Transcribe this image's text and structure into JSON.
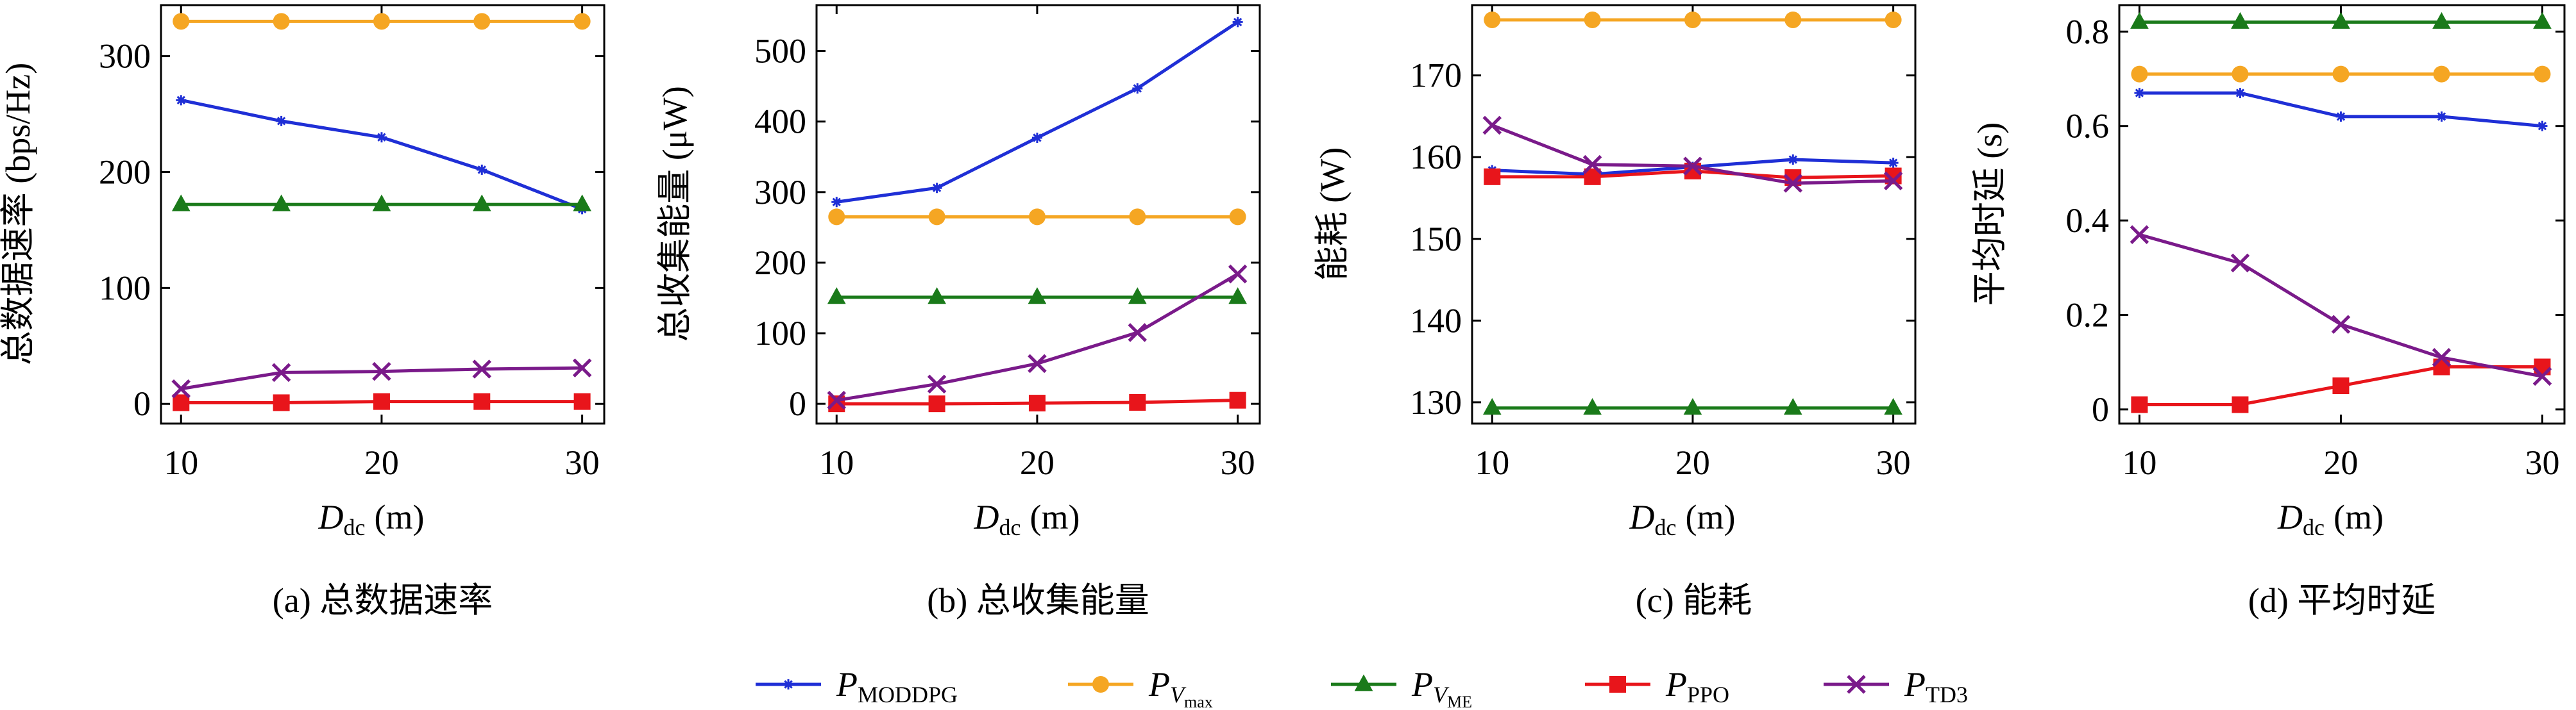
{
  "legend": [
    {
      "name": "P",
      "subscript": "MODDPG",
      "color": "#1f2fd6",
      "marker": "star"
    },
    {
      "name": "P",
      "subscript": "V",
      "subsubscript": "max",
      "color": "#f5a623",
      "marker": "circle"
    },
    {
      "name": "P",
      "subscript": "V",
      "subsubscript": "ME",
      "color": "#1a7a1a",
      "marker": "triangle"
    },
    {
      "name": "P",
      "subscript": "PPO",
      "color": "#e8151b",
      "marker": "square"
    },
    {
      "name": "P",
      "subscript": "TD3",
      "color": "#7a1a8a",
      "marker": "x"
    }
  ],
  "chart_data": [
    {
      "type": "line",
      "title": "(a) 总数据速率",
      "y_label": "总数据速率 (bps/Hz)",
      "x_label": {
        "symbol": "D",
        "subscript": "dc",
        "unit": "(m)"
      },
      "x": [
        10,
        15,
        20,
        25,
        30
      ],
      "xlim": [
        9,
        31.1
      ],
      "xticks": [
        10,
        20,
        30
      ],
      "ylim": [
        -17,
        344
      ],
      "yticks": [
        0,
        100,
        200,
        300
      ],
      "series": [
        {
          "values": [
            262,
            244,
            230,
            202,
            168
          ]
        },
        {
          "values": [
            330,
            330,
            330,
            330,
            330
          ]
        },
        {
          "values": [
            172,
            172,
            172,
            172,
            172
          ]
        },
        {
          "values": [
            1,
            1,
            2,
            2,
            2
          ]
        },
        {
          "values": [
            13,
            27,
            28,
            30,
            31
          ]
        }
      ]
    },
    {
      "type": "line",
      "title": "(b) 总收集能量",
      "y_label": "总收集能量 (μW)",
      "x_label": {
        "symbol": "D",
        "subscript": "dc",
        "unit": "(m)"
      },
      "x": [
        10,
        15,
        20,
        25,
        30
      ],
      "xlim": [
        9,
        31.1
      ],
      "xticks": [
        10,
        20,
        30
      ],
      "ylim": [
        -28,
        565
      ],
      "yticks": [
        0,
        100,
        200,
        300,
        400,
        500
      ],
      "series": [
        {
          "values": [
            286,
            306,
            377,
            447,
            541
          ]
        },
        {
          "values": [
            265,
            265,
            265,
            265,
            265
          ]
        },
        {
          "values": [
            151,
            151,
            151,
            151,
            151
          ]
        },
        {
          "values": [
            0,
            0,
            1,
            2,
            5
          ]
        },
        {
          "values": [
            5,
            28,
            57,
            101,
            184
          ]
        }
      ]
    },
    {
      "type": "line",
      "title": "(c) 能耗",
      "y_label": "能耗 (W)",
      "x_label": {
        "symbol": "D",
        "subscript": "dc",
        "unit": "(m)"
      },
      "x": [
        10,
        15,
        20,
        25,
        30
      ],
      "xlim": [
        9,
        31.1
      ],
      "xticks": [
        10,
        20,
        30
      ],
      "ylim": [
        127.4,
        178.6
      ],
      "yticks": [
        130,
        140,
        150,
        160,
        170
      ],
      "series": [
        {
          "values": [
            158.4,
            157.9,
            158.8,
            159.7,
            159.3
          ]
        },
        {
          "values": [
            176.8,
            176.8,
            176.8,
            176.8,
            176.8
          ]
        },
        {
          "values": [
            129.3,
            129.3,
            129.3,
            129.3,
            129.3
          ]
        },
        {
          "values": [
            157.6,
            157.6,
            158.3,
            157.5,
            157.7
          ]
        },
        {
          "values": [
            163.9,
            159.1,
            158.9,
            156.8,
            157.1
          ]
        }
      ]
    },
    {
      "type": "line",
      "title": "(d) 平均时延",
      "y_label": "平均时延 (s)",
      "x_label": {
        "symbol": "D",
        "subscript": "dc",
        "unit": "(m)"
      },
      "x": [
        10,
        15,
        20,
        25,
        30
      ],
      "xlim": [
        9,
        31.1
      ],
      "xticks": [
        10,
        20,
        30
      ],
      "ylim": [
        -0.03,
        0.856
      ],
      "yticks": [
        0,
        0.2,
        0.4,
        0.6,
        0.8
      ],
      "series": [
        {
          "values": [
            0.67,
            0.67,
            0.62,
            0.62,
            0.6
          ]
        },
        {
          "values": [
            0.71,
            0.71,
            0.71,
            0.71,
            0.71
          ]
        },
        {
          "values": [
            0.82,
            0.82,
            0.82,
            0.82,
            0.82
          ]
        },
        {
          "values": [
            0.01,
            0.01,
            0.05,
            0.09,
            0.09
          ]
        },
        {
          "values": [
            0.37,
            0.31,
            0.18,
            0.11,
            0.07
          ]
        }
      ]
    }
  ]
}
